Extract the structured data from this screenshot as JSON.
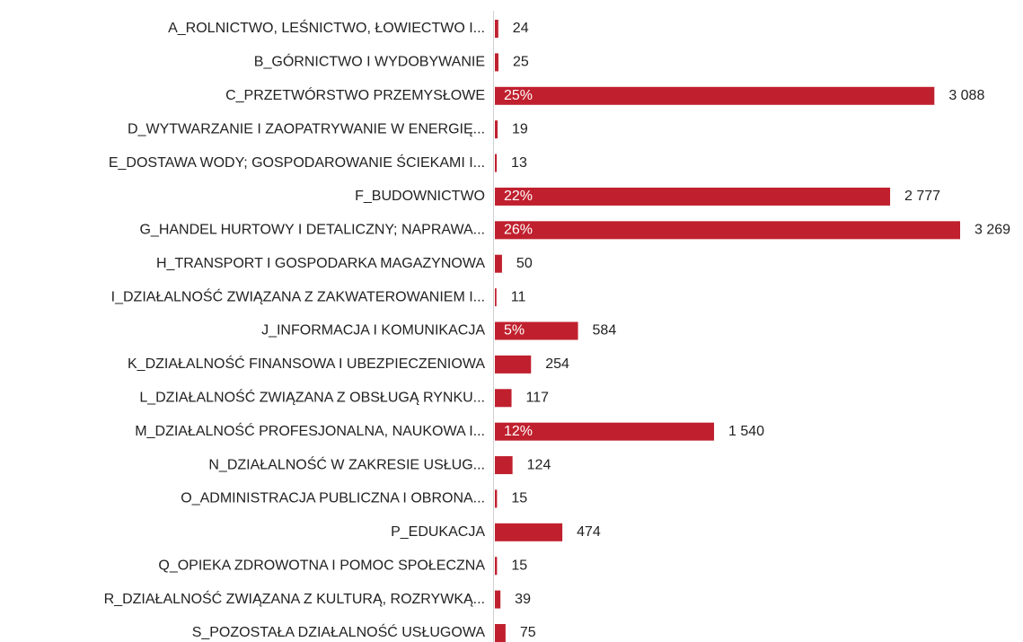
{
  "chart_data": {
    "type": "hbar",
    "color": "#c0202e",
    "categories": [
      "A_ROLNICTWO, LEŚNICTWO, ŁOWIECTWO I...",
      "B_GÓRNICTWO I WYDOBYWANIE",
      "C_PRZETWÓRSTWO PRZEMYSŁOWE",
      "D_WYTWARZANIE I ZAOPATRYWANIE W ENERGIĘ...",
      "E_DOSTAWA WODY; GOSPODAROWANIE ŚCIEKAMI I...",
      "F_BUDOWNICTWO",
      "G_HANDEL HURTOWY I DETALICZNY; NAPRAWA...",
      "H_TRANSPORT I GOSPODARKA MAGAZYNOWA",
      "I_DZIAŁALNOŚĆ ZWIĄZANA Z ZAKWATEROWANIEM I...",
      "J_INFORMACJA I KOMUNIKACJA",
      "K_DZIAŁALNOŚĆ FINANSOWA I UBEZPIECZENIOWA",
      "L_DZIAŁALNOŚĆ ZWIĄZANA Z OBSŁUGĄ RYNKU...",
      "M_DZIAŁALNOŚĆ PROFESJONALNA, NAUKOWA I...",
      "N_DZIAŁALNOŚĆ W ZAKRESIE USŁUG...",
      "O_ADMINISTRACJA PUBLICZNA I OBRONA...",
      "P_EDUKACJA",
      "Q_OPIEKA ZDROWOTNA I POMOC SPOŁECZNA",
      "R_DZIAŁALNOŚĆ ZWIĄZANA Z KULTURĄ, ROZRYWKĄ...",
      "S_POZOSTAŁA DZIAŁALNOŚĆ USŁUGOWA"
    ],
    "values": [
      24,
      25,
      3088,
      19,
      13,
      2777,
      3269,
      50,
      11,
      584,
      254,
      117,
      1540,
      124,
      15,
      474,
      15,
      39,
      75
    ],
    "value_labels": [
      "24",
      "25",
      "3 088",
      "19",
      "13",
      "2 777",
      "3 269",
      "50",
      "11",
      "584",
      "254",
      "117",
      "1 540",
      "124",
      "15",
      "474",
      "15",
      "39",
      "75"
    ],
    "shares": [
      null,
      null,
      25,
      null,
      null,
      22,
      26,
      null,
      null,
      5,
      null,
      null,
      12,
      null,
      null,
      null,
      null,
      null,
      null
    ],
    "share_labels": [
      null,
      null,
      "25%",
      null,
      null,
      "22%",
      "26%",
      null,
      null,
      "5%",
      null,
      null,
      "12%",
      null,
      null,
      null,
      null,
      null,
      null
    ]
  }
}
